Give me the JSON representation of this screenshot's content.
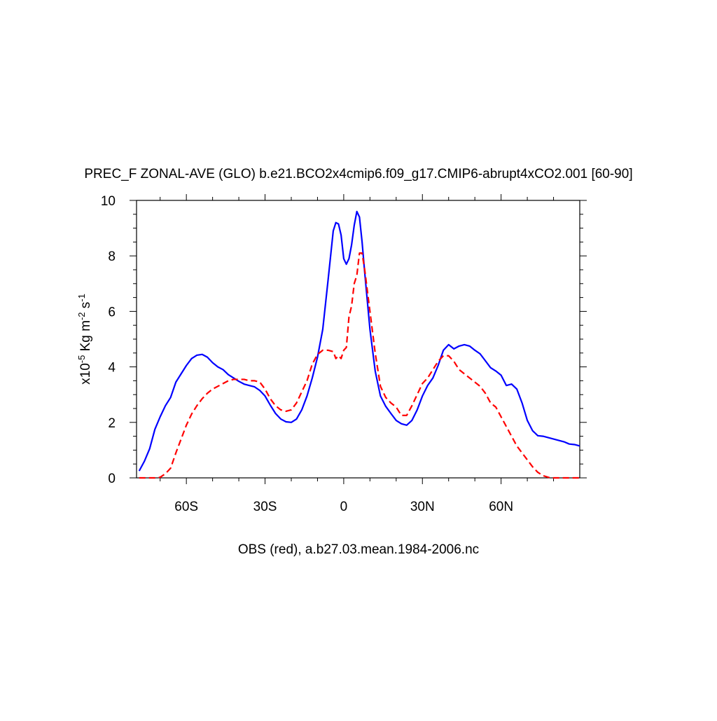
{
  "chart_data": {
    "type": "line",
    "title": "PREC_F ZONAL-AVE (GLO) b.e21.BCO2x4cmip6.f09_g17.CMIP6-abrupt4xCO2.001 [60-90]",
    "xlabel": "OBS (red), a.b27.03.mean.1984-2006.nc",
    "ylabel": [
      "x10",
      "-5",
      " Kg m",
      "-2",
      " s",
      "-1"
    ],
    "xlim": [
      -79,
      90
    ],
    "ylim": [
      0,
      10
    ],
    "xticks": [
      {
        "value": -60,
        "label": "60S"
      },
      {
        "value": -30,
        "label": "30S"
      },
      0,
      {
        "value": 30,
        "label": "30N"
      },
      {
        "value": 60,
        "label": "60N"
      }
    ],
    "xminorticks": [
      -70,
      -50,
      -40,
      -20,
      -10,
      10,
      20,
      40,
      50,
      70,
      80
    ],
    "yticks": [
      0,
      2,
      4,
      6,
      8,
      10
    ],
    "yminorticks": [
      0.5,
      1,
      1.5,
      2.5,
      3,
      3.5,
      4.5,
      5,
      5.5,
      6.5,
      7,
      7.5,
      8.5,
      9,
      9.5
    ],
    "x": [
      -78,
      -76,
      -74,
      -72,
      -70,
      -68,
      -66,
      -64,
      -62,
      -60,
      -58,
      -56,
      -54,
      -52,
      -50,
      -48,
      -46,
      -44,
      -42,
      -40,
      -38,
      -36,
      -34,
      -32,
      -30,
      -28,
      -26,
      -24,
      -22,
      -20,
      -18,
      -16,
      -14,
      -12,
      -10,
      -8,
      -6,
      -4,
      -3,
      -2,
      -1,
      0,
      1,
      2,
      3,
      4,
      5,
      6,
      7,
      8,
      10,
      12,
      14,
      16,
      18,
      20,
      22,
      24,
      26,
      28,
      30,
      32,
      34,
      36,
      38,
      40,
      42,
      44,
      46,
      48,
      50,
      52,
      54,
      56,
      58,
      60,
      62,
      64,
      66,
      68,
      70,
      72,
      74,
      76,
      78,
      80,
      82,
      84,
      86,
      88,
      90
    ],
    "series": [
      {
        "color": "#0000ff",
        "dashed": false,
        "values": [
          0.25,
          0.6,
          1.05,
          1.75,
          2.2,
          2.6,
          2.9,
          3.45,
          3.75,
          4.05,
          4.3,
          4.42,
          4.45,
          4.35,
          4.15,
          4.0,
          3.9,
          3.72,
          3.6,
          3.48,
          3.38,
          3.33,
          3.28,
          3.15,
          2.95,
          2.62,
          2.32,
          2.12,
          2.02,
          2.0,
          2.12,
          2.45,
          2.95,
          3.6,
          4.35,
          5.35,
          7.1,
          8.9,
          9.2,
          9.15,
          8.75,
          7.9,
          7.7,
          7.9,
          8.4,
          9.1,
          9.6,
          9.4,
          8.5,
          7.4,
          5.35,
          3.85,
          2.95,
          2.58,
          2.32,
          2.07,
          1.95,
          1.9,
          2.07,
          2.45,
          2.95,
          3.33,
          3.6,
          4.05,
          4.6,
          4.8,
          4.65,
          4.75,
          4.8,
          4.75,
          4.6,
          4.47,
          4.22,
          3.97,
          3.85,
          3.7,
          3.33,
          3.38,
          3.2,
          2.7,
          2.07,
          1.7,
          1.52,
          1.5,
          1.45,
          1.4,
          1.35,
          1.3,
          1.22,
          1.2,
          1.15
        ]
      },
      {
        "color": "#ff0000",
        "dashed": true,
        "values": [
          0,
          0,
          0,
          0,
          0.02,
          0.15,
          0.35,
          0.9,
          1.4,
          1.9,
          2.3,
          2.6,
          2.85,
          3.05,
          3.2,
          3.3,
          3.4,
          3.5,
          3.55,
          3.55,
          3.55,
          3.5,
          3.5,
          3.45,
          3.2,
          2.85,
          2.6,
          2.45,
          2.4,
          2.45,
          2.7,
          3.1,
          3.5,
          4.1,
          4.45,
          4.6,
          4.6,
          4.55,
          4.3,
          4.4,
          4.3,
          4.6,
          4.7,
          5.8,
          6.2,
          7.0,
          7.3,
          8.1,
          8.1,
          7.5,
          6.0,
          4.5,
          3.3,
          2.9,
          2.7,
          2.55,
          2.25,
          2.25,
          2.6,
          3.0,
          3.4,
          3.6,
          3.9,
          4.2,
          4.4,
          4.4,
          4.2,
          3.9,
          3.75,
          3.6,
          3.45,
          3.3,
          3.05,
          2.7,
          2.55,
          2.2,
          1.85,
          1.5,
          1.15,
          0.9,
          0.65,
          0.4,
          0.2,
          0.08,
          0.02,
          0,
          0,
          0,
          0,
          0,
          0
        ]
      }
    ]
  }
}
